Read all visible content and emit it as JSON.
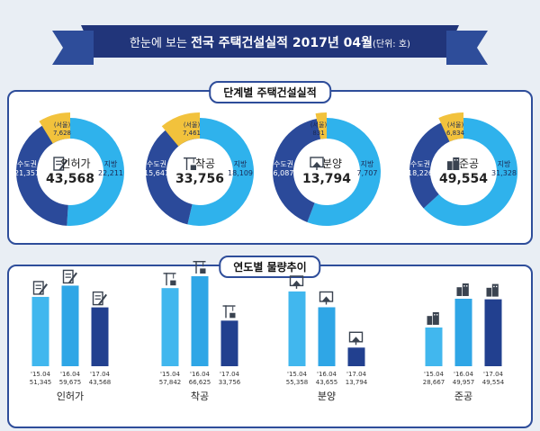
{
  "header": {
    "title_pre": "한눈에 보는 ",
    "title_bold": "전국 주택건설실적 2017년 04월",
    "unit": "(단위: 호)"
  },
  "section1": {
    "title": "단계별 주택건설실적"
  },
  "section2": {
    "title": "연도별 물량추이"
  },
  "colors": {
    "navy": "#2b4a9a",
    "sky": "#2fb2ec",
    "gold": "#f2c23c",
    "darknavy": "#1e3674",
    "banner": "#21357a"
  },
  "icons": [
    "permit-document-icon",
    "construction-crane-icon",
    "house-sale-icon",
    "building-complete-icon"
  ],
  "chart_data": [
    {
      "type": "pie",
      "title": "",
      "stage": "인허가",
      "total": "43,568",
      "slices": [
        {
          "name": "지방",
          "value": 22211,
          "label": "22,211"
        },
        {
          "name": "수도권",
          "value": 21357,
          "label": "21,357"
        },
        {
          "name": "(서울)",
          "value": 7628,
          "label": "7,628"
        }
      ]
    },
    {
      "type": "pie",
      "title": "",
      "stage": "착공",
      "total": "33,756",
      "slices": [
        {
          "name": "지방",
          "value": 18109,
          "label": "18,109"
        },
        {
          "name": "수도권",
          "value": 15647,
          "label": "15,647"
        },
        {
          "name": "(서울)",
          "value": 7461,
          "label": "7,461"
        }
      ]
    },
    {
      "type": "pie",
      "title": "",
      "stage": "분양",
      "total": "13,794",
      "slices": [
        {
          "name": "지방",
          "value": 7707,
          "label": "7,707"
        },
        {
          "name": "수도권",
          "value": 6087,
          "label": "6,087"
        },
        {
          "name": "(서울)",
          "value": 831,
          "label": "831"
        }
      ]
    },
    {
      "type": "pie",
      "title": "",
      "stage": "준공",
      "total": "49,554",
      "slices": [
        {
          "name": "지방",
          "value": 31328,
          "label": "31,328"
        },
        {
          "name": "수도권",
          "value": 18226,
          "label": "18,226"
        },
        {
          "name": "(서울)",
          "value": 6834,
          "label": "6,834"
        }
      ]
    },
    {
      "type": "bar",
      "title": "",
      "name": "인허가",
      "categories": [
        "'15.04",
        "'16.04",
        "'17.04"
      ],
      "values": [
        51345,
        59675,
        43568
      ],
      "labels": [
        "51,345",
        "59,675",
        "43,568"
      ]
    },
    {
      "type": "bar",
      "title": "",
      "name": "착공",
      "categories": [
        "'15.04",
        "'16.04",
        "'17.04"
      ],
      "values": [
        57842,
        66625,
        33756
      ],
      "labels": [
        "57,842",
        "66,625",
        "33,756"
      ]
    },
    {
      "type": "bar",
      "title": "",
      "name": "분양",
      "categories": [
        "'15.04",
        "'16.04",
        "'17.04"
      ],
      "values": [
        55358,
        43655,
        13794
      ],
      "labels": [
        "55,358",
        "43,655",
        "13,794"
      ]
    },
    {
      "type": "bar",
      "title": "",
      "name": "준공",
      "categories": [
        "'15.04",
        "'16.04",
        "'17.04"
      ],
      "values": [
        28667,
        49957,
        49554
      ],
      "labels": [
        "28,667",
        "49,957",
        "49,554"
      ]
    }
  ]
}
